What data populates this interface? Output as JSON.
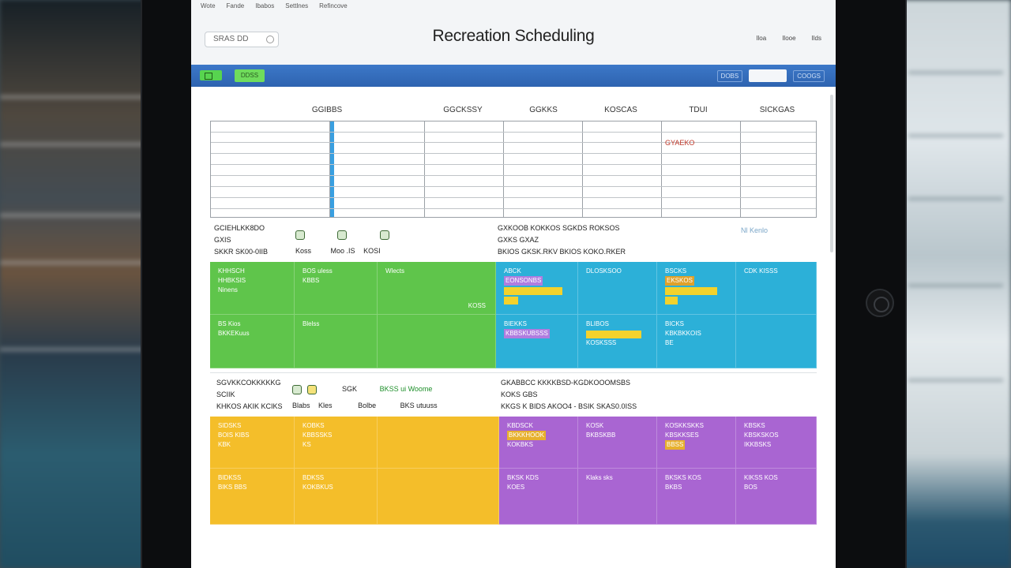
{
  "app": {
    "title": "Recreation Scheduling",
    "menu": [
      "Wote",
      "Fande",
      "Ibabos",
      "Settlnes",
      "Refincove"
    ],
    "search_value": "SRAS DD",
    "top_links": [
      "Iloa",
      "Ilooe",
      "Ilds"
    ]
  },
  "toolbar": {
    "primary_button": "DDSS",
    "right_links": [
      "DOBS",
      "COOGS"
    ]
  },
  "schedule": {
    "columns": [
      "GGIBBS",
      "GGCKSSY",
      "GGKKS",
      "KOSCAS",
      "TDUI",
      "SICKGAS"
    ],
    "note": "GYAEKO"
  },
  "groups": {
    "green": {
      "header_rows": [
        "GCIEHLKK8DO",
        "GXIS",
        "SKKR SK00-0IIB"
      ],
      "icon_labels": [
        "Koss",
        "Moo .IS",
        "KOSI"
      ],
      "cells": [
        [
          "KHHSCH",
          "HHBKSIS",
          "Ninens"
        ],
        [
          "BOS uless",
          "KBBS"
        ],
        [
          "Wlects"
        ],
        [
          "KOSS"
        ],
        [
          "BS Kios",
          "BKKEKuus"
        ],
        [
          "Blelss"
        ]
      ]
    },
    "teal": {
      "header_rows": [
        "GXKOOB KOKKOS SGKDS ROKSOS",
        "GXKS  GXAZ",
        "BKIOS GKSK.RKV BKIOS KOKO.RKER"
      ],
      "side_note": "Nl Kenlo",
      "cells": [
        [
          "ABCK",
          "EONSONBS"
        ],
        [
          "DLOSKSOO"
        ],
        [
          "BSCKS",
          "EKSKOS"
        ],
        [
          "CDK KISSS"
        ],
        [
          "BIEKKS",
          "KBBSKUBSSS"
        ],
        [
          "BLIBOS",
          "KOSKSSS"
        ],
        [
          "BICKS",
          "KBKBKKOIS",
          "BE"
        ],
        []
      ]
    },
    "yellow": {
      "header_rows": [
        "SGVKKCOKKKKKG",
        "SCIIK",
        "KHKOS AKIK KCIKS"
      ],
      "icon_labels": [
        "Blabs",
        "Kles",
        "Bolbe"
      ],
      "extra": [
        "SGK",
        "BKSS ui Woome",
        "BKS utuuss"
      ],
      "cells": [
        [
          "SIDSKS",
          "BOIS KIBS",
          "KBK"
        ],
        [
          "KOBKS",
          "KBBSSKS",
          "KS"
        ],
        [],
        [
          "BIDKSS",
          "BIKS BBS"
        ],
        [
          "BDKSS",
          "KOKBKUS"
        ],
        []
      ]
    },
    "purple": {
      "header_rows": [
        "GKABBCC KKKKBSD-KGDKOOOMSBS",
        "KOKS  GBS",
        "KKGS K BIDS AKOO4 - BSIK SKAS0.0ISS"
      ],
      "cells": [
        [
          "KBDSCK",
          "BKKKHOOK",
          "KOKBKS"
        ],
        [
          "KOSK",
          "BKBSKBB"
        ],
        [
          "KOSKKSKKS",
          "KBSKKSES",
          "BBSS"
        ],
        [
          "KBSKS",
          "KBSKSKOS",
          "IKKBSKS"
        ],
        [
          "BKSK KDS",
          "KOES"
        ],
        [
          "Klaks sks"
        ],
        [
          "BKSKS KOS",
          "BKBS"
        ],
        [
          "KIKSS KOS",
          "BOS"
        ]
      ]
    }
  },
  "colors": {
    "blue_bar": "#3c78c8",
    "green": "#5fc54b",
    "teal": "#2cb0d8",
    "yellow": "#f4be2a",
    "purple": "#a965d2"
  }
}
